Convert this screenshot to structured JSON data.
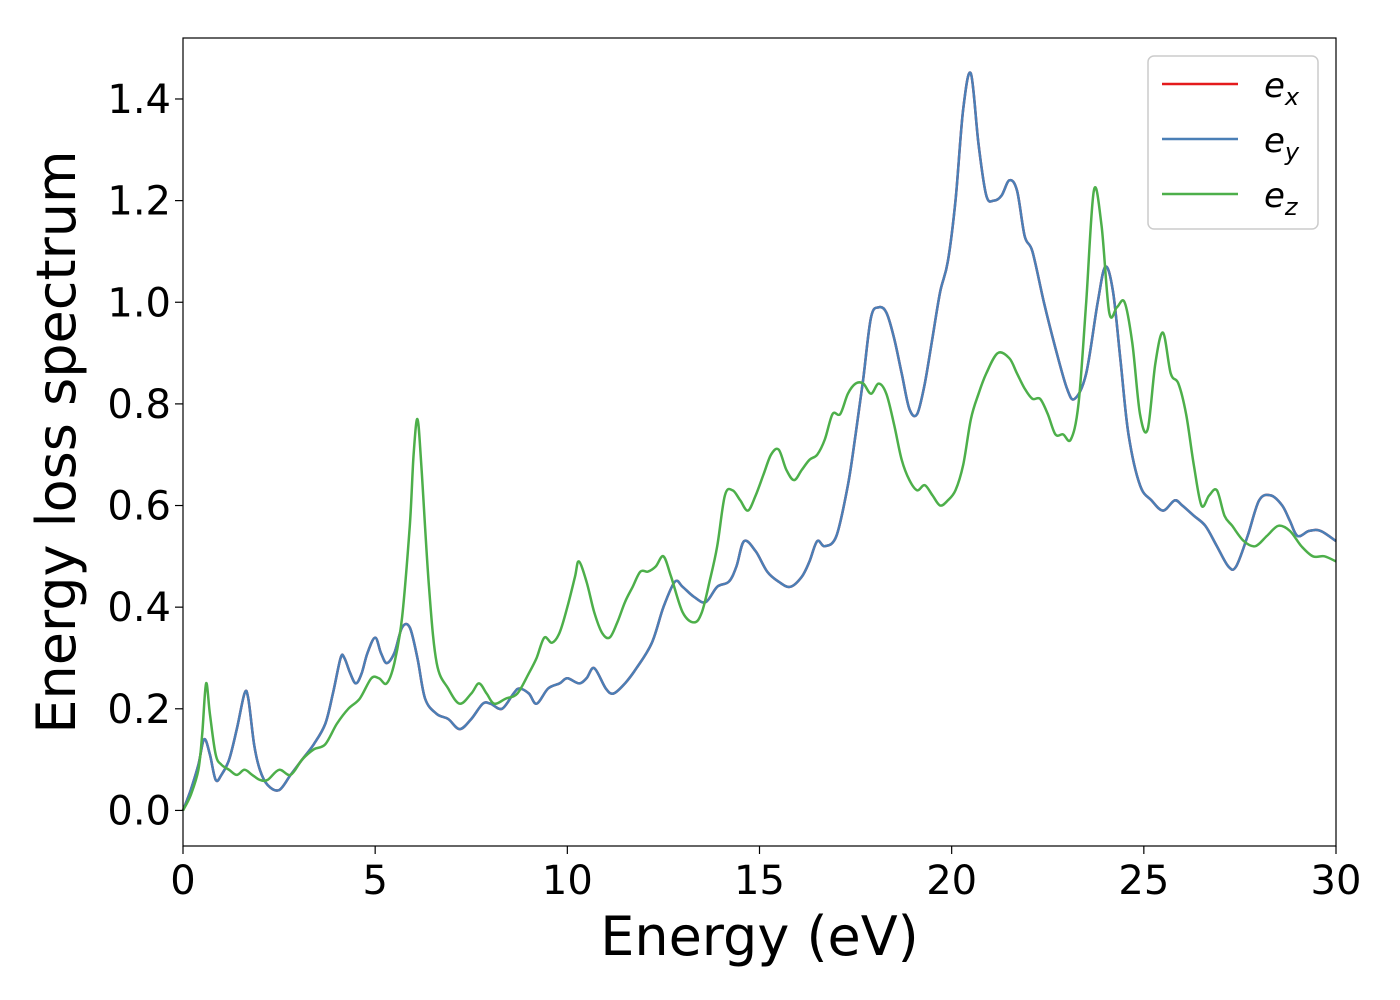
{
  "chart_data": {
    "type": "line",
    "xlabel": "Energy (eV)",
    "ylabel": "Energy loss spectrum",
    "xlim": [
      0,
      30
    ],
    "ylim": [
      -0.07,
      1.52
    ],
    "xticks": [
      0,
      5,
      10,
      15,
      20,
      25,
      30
    ],
    "xtick_labels": [
      "0",
      "5",
      "10",
      "15",
      "20",
      "25",
      "30"
    ],
    "yticks": [
      0.0,
      0.2,
      0.4,
      0.6,
      0.8,
      1.0,
      1.2,
      1.4
    ],
    "ytick_labels": [
      "0.0",
      "0.2",
      "0.4",
      "0.6",
      "0.8",
      "1.0",
      "1.2",
      "1.4"
    ],
    "grid": false,
    "legend_position": "top-right",
    "series": [
      {
        "name": "e",
        "subscript": "x",
        "color": "#e41a1c",
        "x": [
          0,
          0.2,
          0.4,
          0.55,
          0.7,
          0.85,
          1.0,
          1.2,
          1.4,
          1.6,
          1.7,
          1.85,
          2.0,
          2.2,
          2.5,
          2.8,
          3.1,
          3.4,
          3.7,
          3.9,
          4.1,
          4.2,
          4.35,
          4.5,
          4.65,
          4.8,
          5.0,
          5.15,
          5.3,
          5.5,
          5.7,
          5.9,
          6.1,
          6.3,
          6.6,
          6.9,
          7.2,
          7.5,
          7.8,
          8.0,
          8.3,
          8.6,
          8.75,
          9.0,
          9.2,
          9.5,
          9.8,
          10.0,
          10.3,
          10.5,
          10.7,
          11.0,
          11.2,
          11.5,
          11.8,
          12.2,
          12.5,
          12.8,
          13.0,
          13.3,
          13.6,
          13.9,
          14.2,
          14.4,
          14.6,
          14.9,
          15.2,
          15.5,
          15.8,
          16.1,
          16.3,
          16.5,
          16.7,
          17.0,
          17.3,
          17.5,
          17.7,
          17.9,
          18.1,
          18.3,
          18.5,
          18.7,
          18.9,
          19.1,
          19.3,
          19.5,
          19.7,
          19.9,
          20.1,
          20.3,
          20.5,
          20.7,
          20.9,
          21.1,
          21.3,
          21.5,
          21.7,
          21.9,
          22.1,
          22.4,
          22.7,
          23.0,
          23.2,
          23.5,
          23.8,
          24.0,
          24.2,
          24.4,
          24.6,
          24.9,
          25.2,
          25.5,
          25.8,
          26.0,
          26.3,
          26.6,
          26.9,
          27.2,
          27.4,
          27.7,
          28.0,
          28.3,
          28.6,
          28.8,
          29.0,
          29.3,
          29.6,
          30.0
        ],
        "values": [
          0.0,
          0.04,
          0.09,
          0.14,
          0.11,
          0.06,
          0.07,
          0.1,
          0.16,
          0.23,
          0.22,
          0.13,
          0.08,
          0.05,
          0.04,
          0.07,
          0.1,
          0.13,
          0.17,
          0.23,
          0.3,
          0.3,
          0.27,
          0.25,
          0.27,
          0.31,
          0.34,
          0.31,
          0.29,
          0.31,
          0.36,
          0.36,
          0.3,
          0.22,
          0.19,
          0.18,
          0.16,
          0.18,
          0.21,
          0.21,
          0.2,
          0.23,
          0.24,
          0.23,
          0.21,
          0.24,
          0.25,
          0.26,
          0.25,
          0.26,
          0.28,
          0.24,
          0.23,
          0.25,
          0.28,
          0.33,
          0.4,
          0.45,
          0.44,
          0.42,
          0.41,
          0.44,
          0.45,
          0.48,
          0.53,
          0.51,
          0.47,
          0.45,
          0.44,
          0.46,
          0.49,
          0.53,
          0.52,
          0.54,
          0.64,
          0.74,
          0.85,
          0.97,
          0.99,
          0.98,
          0.93,
          0.86,
          0.79,
          0.78,
          0.84,
          0.93,
          1.02,
          1.08,
          1.2,
          1.38,
          1.45,
          1.31,
          1.21,
          1.2,
          1.21,
          1.24,
          1.22,
          1.13,
          1.1,
          1.0,
          0.91,
          0.83,
          0.81,
          0.86,
          1.0,
          1.07,
          1.02,
          0.88,
          0.74,
          0.64,
          0.61,
          0.59,
          0.61,
          0.6,
          0.58,
          0.56,
          0.52,
          0.48,
          0.48,
          0.54,
          0.61,
          0.62,
          0.6,
          0.57,
          0.54,
          0.55,
          0.55,
          0.53
        ]
      },
      {
        "name": "e",
        "subscript": "y",
        "color": "#4a7fb6",
        "x": [
          0,
          0.2,
          0.4,
          0.55,
          0.7,
          0.85,
          1.0,
          1.2,
          1.4,
          1.6,
          1.7,
          1.85,
          2.0,
          2.2,
          2.5,
          2.8,
          3.1,
          3.4,
          3.7,
          3.9,
          4.1,
          4.2,
          4.35,
          4.5,
          4.65,
          4.8,
          5.0,
          5.15,
          5.3,
          5.5,
          5.7,
          5.9,
          6.1,
          6.3,
          6.6,
          6.9,
          7.2,
          7.5,
          7.8,
          8.0,
          8.3,
          8.6,
          8.75,
          9.0,
          9.2,
          9.5,
          9.8,
          10.0,
          10.3,
          10.5,
          10.7,
          11.0,
          11.2,
          11.5,
          11.8,
          12.2,
          12.5,
          12.8,
          13.0,
          13.3,
          13.6,
          13.9,
          14.2,
          14.4,
          14.6,
          14.9,
          15.2,
          15.5,
          15.8,
          16.1,
          16.3,
          16.5,
          16.7,
          17.0,
          17.3,
          17.5,
          17.7,
          17.9,
          18.1,
          18.3,
          18.5,
          18.7,
          18.9,
          19.1,
          19.3,
          19.5,
          19.7,
          19.9,
          20.1,
          20.3,
          20.5,
          20.7,
          20.9,
          21.1,
          21.3,
          21.5,
          21.7,
          21.9,
          22.1,
          22.4,
          22.7,
          23.0,
          23.2,
          23.5,
          23.8,
          24.0,
          24.2,
          24.4,
          24.6,
          24.9,
          25.2,
          25.5,
          25.8,
          26.0,
          26.3,
          26.6,
          26.9,
          27.2,
          27.4,
          27.7,
          28.0,
          28.3,
          28.6,
          28.8,
          29.0,
          29.3,
          29.6,
          30.0
        ],
        "values": [
          0.0,
          0.04,
          0.09,
          0.14,
          0.11,
          0.06,
          0.07,
          0.1,
          0.16,
          0.23,
          0.22,
          0.13,
          0.08,
          0.05,
          0.04,
          0.07,
          0.1,
          0.13,
          0.17,
          0.23,
          0.3,
          0.3,
          0.27,
          0.25,
          0.27,
          0.31,
          0.34,
          0.31,
          0.29,
          0.31,
          0.36,
          0.36,
          0.3,
          0.22,
          0.19,
          0.18,
          0.16,
          0.18,
          0.21,
          0.21,
          0.2,
          0.23,
          0.24,
          0.23,
          0.21,
          0.24,
          0.25,
          0.26,
          0.25,
          0.26,
          0.28,
          0.24,
          0.23,
          0.25,
          0.28,
          0.33,
          0.4,
          0.45,
          0.44,
          0.42,
          0.41,
          0.44,
          0.45,
          0.48,
          0.53,
          0.51,
          0.47,
          0.45,
          0.44,
          0.46,
          0.49,
          0.53,
          0.52,
          0.54,
          0.64,
          0.74,
          0.85,
          0.97,
          0.99,
          0.98,
          0.93,
          0.86,
          0.79,
          0.78,
          0.84,
          0.93,
          1.02,
          1.08,
          1.2,
          1.38,
          1.45,
          1.31,
          1.21,
          1.2,
          1.21,
          1.24,
          1.22,
          1.13,
          1.1,
          1.0,
          0.91,
          0.83,
          0.81,
          0.86,
          1.0,
          1.07,
          1.02,
          0.88,
          0.74,
          0.64,
          0.61,
          0.59,
          0.61,
          0.6,
          0.58,
          0.56,
          0.52,
          0.48,
          0.48,
          0.54,
          0.61,
          0.62,
          0.6,
          0.57,
          0.54,
          0.55,
          0.55,
          0.53
        ]
      },
      {
        "name": "e",
        "subscript": "z",
        "color": "#4daf4a",
        "x": [
          0,
          0.2,
          0.4,
          0.5,
          0.6,
          0.7,
          0.85,
          1.0,
          1.2,
          1.4,
          1.6,
          1.8,
          2.0,
          2.2,
          2.5,
          2.8,
          3.1,
          3.4,
          3.7,
          4.0,
          4.3,
          4.6,
          4.9,
          5.1,
          5.3,
          5.5,
          5.7,
          5.9,
          6.0,
          6.1,
          6.2,
          6.4,
          6.6,
          6.9,
          7.2,
          7.5,
          7.7,
          7.9,
          8.1,
          8.4,
          8.7,
          9.0,
          9.2,
          9.4,
          9.6,
          9.8,
          10.0,
          10.2,
          10.3,
          10.5,
          10.7,
          10.9,
          11.1,
          11.3,
          11.5,
          11.7,
          11.9,
          12.1,
          12.3,
          12.5,
          12.7,
          13.0,
          13.3,
          13.5,
          13.7,
          13.9,
          14.1,
          14.3,
          14.5,
          14.7,
          14.9,
          15.1,
          15.3,
          15.5,
          15.7,
          15.9,
          16.1,
          16.3,
          16.5,
          16.7,
          16.9,
          17.1,
          17.3,
          17.5,
          17.7,
          17.9,
          18.1,
          18.3,
          18.5,
          18.7,
          18.9,
          19.1,
          19.3,
          19.5,
          19.7,
          19.9,
          20.1,
          20.3,
          20.5,
          20.7,
          20.9,
          21.2,
          21.5,
          21.7,
          21.9,
          22.1,
          22.3,
          22.5,
          22.7,
          22.9,
          23.1,
          23.3,
          23.5,
          23.7,
          23.9,
          24.1,
          24.3,
          24.5,
          24.7,
          24.9,
          25.1,
          25.3,
          25.5,
          25.7,
          25.9,
          26.1,
          26.3,
          26.5,
          26.7,
          26.9,
          27.1,
          27.3,
          27.6,
          27.9,
          28.2,
          28.5,
          28.8,
          29.1,
          29.4,
          29.7,
          30.0
        ],
        "values": [
          0.0,
          0.03,
          0.08,
          0.15,
          0.25,
          0.19,
          0.11,
          0.09,
          0.08,
          0.07,
          0.08,
          0.07,
          0.06,
          0.06,
          0.08,
          0.07,
          0.1,
          0.12,
          0.13,
          0.17,
          0.2,
          0.22,
          0.26,
          0.26,
          0.25,
          0.29,
          0.38,
          0.56,
          0.7,
          0.77,
          0.68,
          0.44,
          0.29,
          0.24,
          0.21,
          0.23,
          0.25,
          0.23,
          0.21,
          0.22,
          0.23,
          0.27,
          0.3,
          0.34,
          0.33,
          0.35,
          0.4,
          0.46,
          0.49,
          0.45,
          0.39,
          0.35,
          0.34,
          0.37,
          0.41,
          0.44,
          0.47,
          0.47,
          0.48,
          0.5,
          0.46,
          0.39,
          0.37,
          0.39,
          0.45,
          0.52,
          0.62,
          0.63,
          0.61,
          0.59,
          0.62,
          0.66,
          0.7,
          0.71,
          0.67,
          0.65,
          0.67,
          0.69,
          0.7,
          0.73,
          0.78,
          0.78,
          0.82,
          0.84,
          0.84,
          0.82,
          0.84,
          0.82,
          0.76,
          0.69,
          0.65,
          0.63,
          0.64,
          0.62,
          0.6,
          0.61,
          0.63,
          0.68,
          0.77,
          0.82,
          0.86,
          0.9,
          0.89,
          0.86,
          0.83,
          0.81,
          0.81,
          0.78,
          0.74,
          0.74,
          0.73,
          0.8,
          1.0,
          1.22,
          1.15,
          0.98,
          0.99,
          1.0,
          0.92,
          0.78,
          0.75,
          0.88,
          0.94,
          0.86,
          0.84,
          0.78,
          0.68,
          0.6,
          0.62,
          0.63,
          0.58,
          0.56,
          0.53,
          0.52,
          0.54,
          0.56,
          0.55,
          0.52,
          0.5,
          0.5,
          0.49
        ]
      }
    ]
  }
}
